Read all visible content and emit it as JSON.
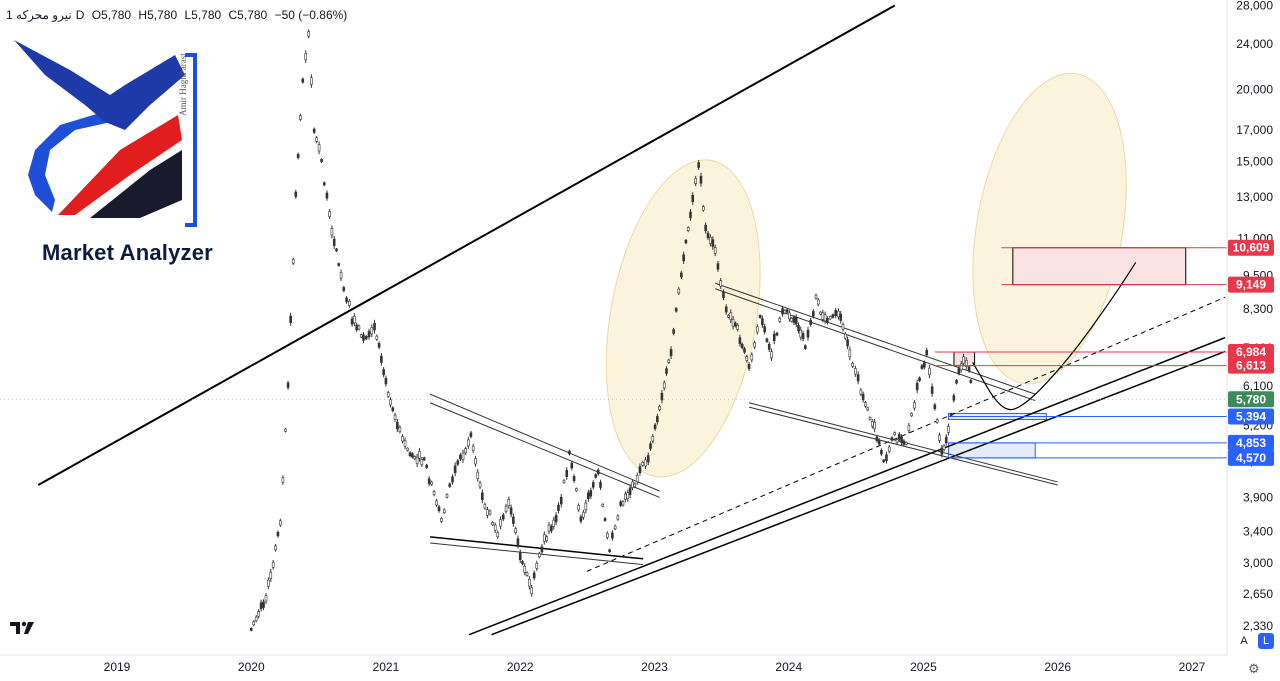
{
  "header": {
    "name": "نیرو محرکه",
    "interval": "1D",
    "open": "O5,780",
    "high": "H5,780",
    "low": "L5,780",
    "close": "C5,780",
    "change": "−50 (−0.86%)"
  },
  "logo": {
    "brand": "Market Analyzer",
    "author": "Amir HaghParast",
    "colors": {
      "blue": "#1e4fd8",
      "red": "#e11d1d",
      "navy": "#0d1b3d"
    }
  },
  "icons": {
    "tradingview": "tradingview-logo-icon",
    "settings": "gear-icon"
  },
  "buttons": {
    "auto_scale": "A",
    "log_scale": "L"
  },
  "chart_data": {
    "type": "candlestick",
    "scale": "log",
    "grid": false,
    "x_range": [
      "2018-06",
      "2027-04"
    ],
    "y_range": [
      2250,
      28000
    ],
    "x_ticks": [
      "2019",
      "2020",
      "2021",
      "2022",
      "2023",
      "2024",
      "2025",
      "2026",
      "2027"
    ],
    "y_ticks": [
      "28,000",
      "24,000",
      "20,000",
      "17,000",
      "15,000",
      "13,000",
      "11,000",
      "9,500",
      "8,300",
      "7,100",
      "6,100",
      "5,200",
      "4,500",
      "3,900",
      "3,400",
      "3,000",
      "2,650",
      "2,330"
    ],
    "last_price": 5780,
    "series_path": [
      [
        "2020-01-01",
        2330
      ],
      [
        "2020-02-10",
        2600
      ],
      [
        "2020-03-20",
        3500
      ],
      [
        "2020-04-10",
        6100
      ],
      [
        "2020-05-01",
        13000
      ],
      [
        "2020-05-20",
        21000
      ],
      [
        "2020-06-05",
        25000
      ],
      [
        "2020-06-20",
        17000
      ],
      [
        "2020-07-10",
        15000
      ],
      [
        "2020-08-01",
        12000
      ],
      [
        "2020-09-01",
        9500
      ],
      [
        "2020-10-01",
        8000
      ],
      [
        "2020-11-01",
        7400
      ],
      [
        "2020-12-01",
        7800
      ],
      [
        "2021-01-01",
        6200
      ],
      [
        "2021-02-01",
        5200
      ],
      [
        "2021-03-01",
        4700
      ],
      [
        "2021-04-15",
        4500
      ],
      [
        "2021-06-01",
        3600
      ],
      [
        "2021-07-01",
        4200
      ],
      [
        "2021-08-20",
        5000
      ],
      [
        "2021-09-20",
        3900
      ],
      [
        "2021-11-01",
        3400
      ],
      [
        "2021-12-01",
        3800
      ],
      [
        "2022-01-01",
        3100
      ],
      [
        "2022-02-01",
        2700
      ],
      [
        "2022-03-01",
        3200
      ],
      [
        "2022-04-15",
        3700
      ],
      [
        "2022-05-15",
        4600
      ],
      [
        "2022-06-15",
        3600
      ],
      [
        "2022-08-01",
        4300
      ],
      [
        "2022-09-01",
        3200
      ],
      [
        "2022-10-01",
        3800
      ],
      [
        "2022-11-15",
        4200
      ],
      [
        "2022-12-15",
        4600
      ],
      [
        "2023-01-15",
        5600
      ],
      [
        "2023-02-15",
        7000
      ],
      [
        "2023-03-15",
        9500
      ],
      [
        "2023-04-15",
        13000
      ],
      [
        "2023-05-01",
        15000
      ],
      [
        "2023-05-20",
        11500
      ],
      [
        "2023-06-15",
        10500
      ],
      [
        "2023-07-15",
        8300
      ],
      [
        "2023-08-15",
        7600
      ],
      [
        "2023-09-15",
        6600
      ],
      [
        "2023-10-15",
        8000
      ],
      [
        "2023-11-15",
        7000
      ],
      [
        "2023-12-15",
        8300
      ],
      [
        "2024-01-15",
        8000
      ],
      [
        "2024-02-15",
        7200
      ],
      [
        "2024-03-15",
        8600
      ],
      [
        "2024-04-15",
        7800
      ],
      [
        "2024-05-15",
        8200
      ],
      [
        "2024-06-15",
        7000
      ],
      [
        "2024-07-15",
        6000
      ],
      [
        "2024-08-15",
        5300
      ],
      [
        "2024-09-15",
        4500
      ],
      [
        "2024-10-15",
        5000
      ],
      [
        "2024-11-15",
        4800
      ],
      [
        "2024-12-15",
        6000
      ],
      [
        "2025-01-10",
        7000
      ],
      [
        "2025-02-01",
        5600
      ],
      [
        "2025-02-20",
        4700
      ],
      [
        "2025-03-10",
        5100
      ],
      [
        "2025-04-01",
        6200
      ],
      [
        "2025-04-20",
        6800
      ],
      [
        "2025-05-05",
        6500
      ],
      [
        "2025-05-15",
        5780
      ]
    ],
    "price_labels": [
      {
        "value": 10609,
        "text": "10,609",
        "color": "#e8364b"
      },
      {
        "value": 9149,
        "text": "9,149",
        "color": "#e8364b"
      },
      {
        "value": 6984,
        "text": "6,984",
        "color": "#e8364b"
      },
      {
        "value": 6613,
        "text": "6,613",
        "color": "#e8364b"
      },
      {
        "value": 5780,
        "text": "5,780",
        "color": "#3d8a5a"
      },
      {
        "value": 5394,
        "text": "5,394",
        "color": "#2962ff"
      },
      {
        "value": 4853,
        "text": "4,853",
        "color": "#2962ff"
      },
      {
        "value": 4570,
        "text": "4,570",
        "color": "#2962ff"
      }
    ],
    "annotation_lines": [
      {
        "from": [
          "2018-06-01",
          4100
        ],
        "to": [
          "2024-10-15",
          28000
        ],
        "color": "#000000",
        "width": 2
      },
      {
        "from": [
          "2021-08-15",
          2250
        ],
        "to": [
          "2027-04-01",
          7400
        ],
        "color": "#000000",
        "width": 1.5
      },
      {
        "from": [
          "2021-10-15",
          2250
        ],
        "to": [
          "2027-04-01",
          7000
        ],
        "color": "#000000",
        "width": 1.5
      },
      {
        "from": [
          "2022-07-01",
          2900
        ],
        "to": [
          "2027-04-01",
          8700
        ],
        "color": "#000000",
        "width": 1,
        "dashed": true
      },
      {
        "from": [
          "2021-05-01",
          5900
        ],
        "to": [
          "2023-01-15",
          4000
        ],
        "color": "#333333",
        "width": 1
      },
      {
        "from": [
          "2021-05-01",
          5700
        ],
        "to": [
          "2023-01-15",
          3900
        ],
        "color": "#333333",
        "width": 1
      },
      {
        "from": [
          "2021-05-01",
          3330
        ],
        "to": [
          "2022-12-01",
          3050
        ],
        "color": "#000000",
        "width": 1.5
      },
      {
        "from": [
          "2021-05-01",
          3250
        ],
        "to": [
          "2022-12-01",
          2980
        ],
        "color": "#333333",
        "width": 1
      },
      {
        "from": [
          "2023-06-15",
          9200
        ],
        "to": [
          "2025-11-01",
          5900
        ],
        "color": "#333333",
        "width": 1
      },
      {
        "from": [
          "2023-06-15",
          9000
        ],
        "to": [
          "2025-11-01",
          5750
        ],
        "color": "#333333",
        "width": 1
      },
      {
        "from": [
          "2023-09-15",
          5700
        ],
        "to": [
          "2026-01-01",
          4150
        ],
        "color": "#333333",
        "width": 1
      },
      {
        "from": [
          "2023-09-15",
          5600
        ],
        "to": [
          "2026-01-01",
          4100
        ],
        "color": "#333333",
        "width": 1
      }
    ],
    "target_box": {
      "x0": "2025-09-01",
      "x1": "2026-12-15",
      "y0": 9149,
      "y1": 10609,
      "fill": "#fbe2e2",
      "stroke": "#000000"
    },
    "resistance_box": {
      "x0": "2025-03-25",
      "x1": "2025-05-20",
      "y0": 6613,
      "y1": 6984,
      "fill": "#fbe2e2",
      "stroke": "#000000"
    },
    "support_boxes": [
      {
        "x0": "2025-03-10",
        "x1": "2025-12-01",
        "y0": 5330,
        "y1": 5460,
        "fill": "#e3ecfa",
        "stroke": "#2962ff"
      },
      {
        "x0": "2025-03-10",
        "x1": "2025-11-01",
        "y0": 4570,
        "y1": 4853,
        "fill": "#e3ecfa",
        "stroke": "#2962ff"
      }
    ],
    "ellipses": [
      {
        "cx": "2023-03-20",
        "cy": 7500,
        "rx_months": 6.5,
        "top": 15200,
        "bottom": 4200,
        "fill": "#fbf3dc"
      },
      {
        "cx": "2025-12-10",
        "cy": 11500,
        "rx_months": 6.5,
        "top": 21500,
        "bottom": 6100,
        "fill": "#fbf3dc"
      }
    ],
    "projection_path": [
      [
        "2025-05-15",
        6700
      ],
      [
        "2025-08-01",
        5500
      ],
      [
        "2025-10-01",
        5600
      ],
      [
        "2026-02-01",
        6800
      ],
      [
        "2026-06-01",
        8700
      ],
      [
        "2026-08-01",
        10000
      ]
    ]
  }
}
